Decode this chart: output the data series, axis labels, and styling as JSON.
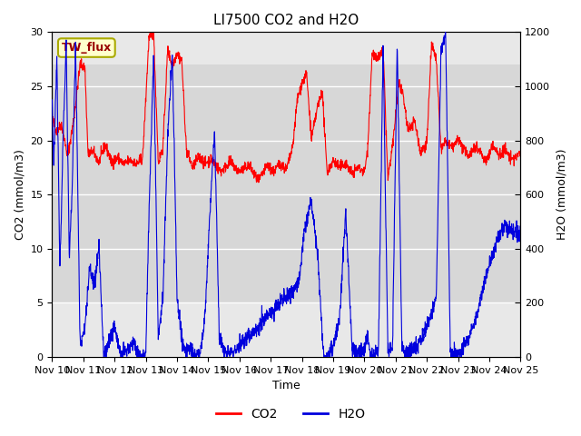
{
  "title": "LI7500 CO2 and H2O",
  "xlabel": "Time",
  "ylabel_left": "CO2 (mmol/m3)",
  "ylabel_right": "H2O (mmol/m3)",
  "ylim_left": [
    0,
    30
  ],
  "ylim_right": [
    0,
    1200
  ],
  "co2_color": "#ff0000",
  "h2o_color": "#0000dd",
  "background_color": "#ffffff",
  "plot_bg_color": "#e8e8e8",
  "inner_band_color": "#d8d8d8",
  "label_box_text": "TW_flux",
  "label_box_facecolor": "#ffffcc",
  "label_box_edgecolor": "#aaaa00",
  "label_box_textcolor": "#990000",
  "legend_co2": "CO2",
  "legend_h2o": "H2O",
  "xstart_day": 10,
  "xend_day": 25,
  "n_points": 2000,
  "yticks_left": [
    0,
    5,
    10,
    15,
    20,
    25,
    30
  ],
  "yticks_right": [
    0,
    200,
    400,
    600,
    800,
    1000,
    1200
  ]
}
